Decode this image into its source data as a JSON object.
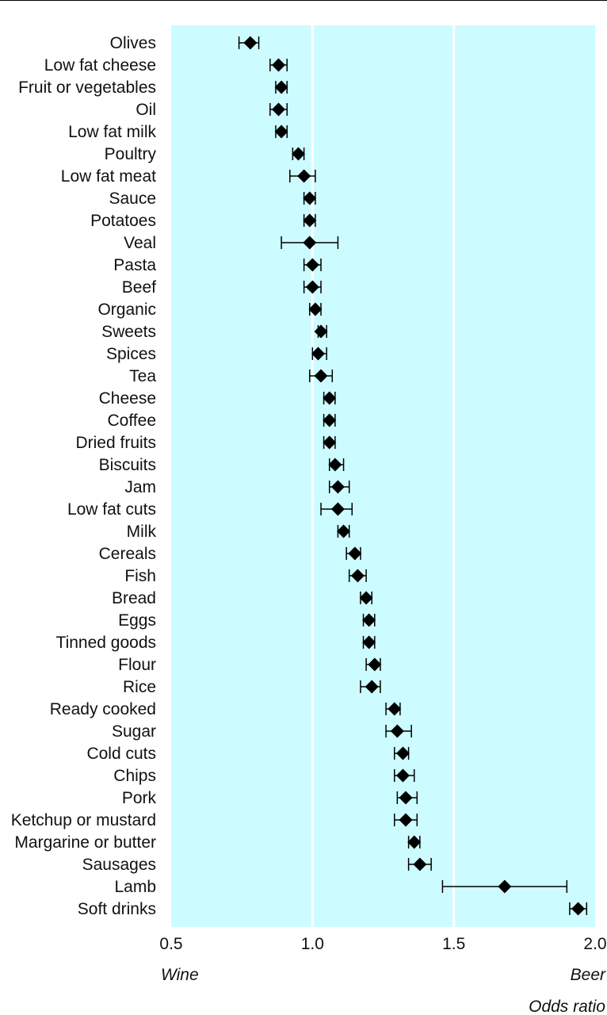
{
  "colors": {
    "plot_bg": "#ccfcff",
    "gridline": "#ffffff",
    "marker": "#000000",
    "top_rule": "#000000"
  },
  "chart_data": {
    "type": "forest",
    "categories": [
      "Olives",
      "Low fat cheese",
      "Fruit or vegetables",
      "Oil",
      "Low fat milk",
      "Poultry",
      "Low fat meat",
      "Sauce",
      "Potatoes",
      "Veal",
      "Pasta",
      "Beef",
      "Organic",
      "Sweets",
      "Spices",
      "Tea",
      "Cheese",
      "Coffee",
      "Dried fruits",
      "Biscuits",
      "Jam",
      "Low fat cuts",
      "Milk",
      "Cereals",
      "Fish",
      "Bread",
      "Eggs",
      "Tinned goods",
      "Flour",
      "Rice",
      "Ready cooked",
      "Sugar",
      "Cold cuts",
      "Chips",
      "Pork",
      "Ketchup or mustard",
      "Margarine or butter",
      "Sausages",
      "Lamb",
      "Soft drinks"
    ],
    "values": [
      0.78,
      0.88,
      0.89,
      0.88,
      0.89,
      0.95,
      0.97,
      0.99,
      0.99,
      0.99,
      1.0,
      1.0,
      1.01,
      1.03,
      1.02,
      1.03,
      1.06,
      1.06,
      1.06,
      1.08,
      1.09,
      1.09,
      1.11,
      1.15,
      1.16,
      1.19,
      1.2,
      1.2,
      1.22,
      1.21,
      1.29,
      1.3,
      1.32,
      1.32,
      1.33,
      1.33,
      1.36,
      1.38,
      1.68,
      1.94
    ],
    "ci_low": [
      0.74,
      0.85,
      0.87,
      0.85,
      0.87,
      0.93,
      0.92,
      0.97,
      0.97,
      0.89,
      0.97,
      0.97,
      0.99,
      1.02,
      1.0,
      0.99,
      1.04,
      1.04,
      1.04,
      1.06,
      1.06,
      1.03,
      1.09,
      1.12,
      1.13,
      1.17,
      1.18,
      1.18,
      1.19,
      1.17,
      1.26,
      1.26,
      1.29,
      1.29,
      1.3,
      1.29,
      1.34,
      1.34,
      1.46,
      1.91
    ],
    "ci_high": [
      0.81,
      0.91,
      0.91,
      0.91,
      0.91,
      0.97,
      1.01,
      1.01,
      1.01,
      1.09,
      1.03,
      1.03,
      1.03,
      1.05,
      1.05,
      1.07,
      1.08,
      1.08,
      1.08,
      1.11,
      1.13,
      1.14,
      1.13,
      1.17,
      1.19,
      1.21,
      1.22,
      1.22,
      1.24,
      1.24,
      1.31,
      1.35,
      1.34,
      1.36,
      1.37,
      1.37,
      1.38,
      1.42,
      1.9,
      1.97
    ],
    "xlim": [
      0.5,
      2.0
    ],
    "xticks": [
      "0.5",
      "1.0",
      "1.5",
      "2.0"
    ],
    "gridlines_at": [
      1.0,
      1.5
    ],
    "left_label": "Wine",
    "right_label": "Beer",
    "xlabel": "Odds ratio"
  }
}
